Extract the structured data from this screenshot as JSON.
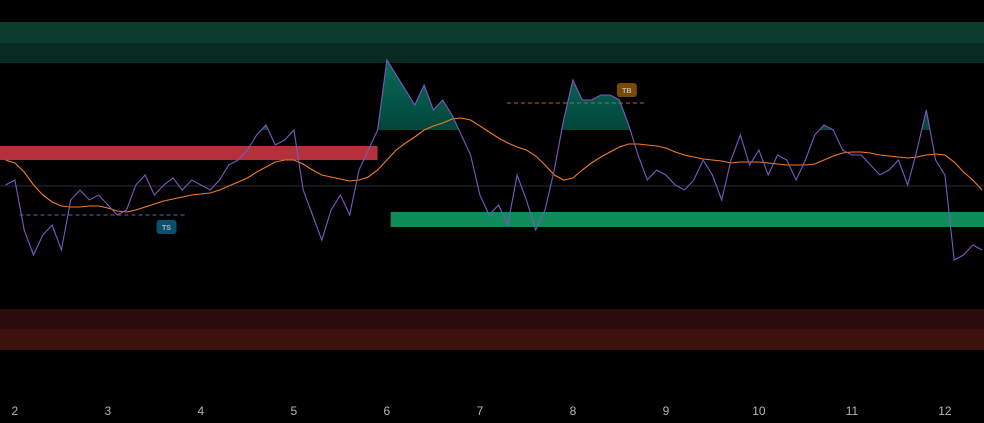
{
  "chart_data": {
    "type": "line",
    "x": [
      1.9,
      2.0,
      2.1,
      2.2,
      2.3,
      2.4,
      2.5,
      2.6,
      2.7,
      2.8,
      2.9,
      3.0,
      3.1,
      3.2,
      3.3,
      3.4,
      3.5,
      3.6,
      3.7,
      3.8,
      3.9,
      4.0,
      4.1,
      4.2,
      4.3,
      4.4,
      4.5,
      4.6,
      4.7,
      4.8,
      4.9,
      5.0,
      5.1,
      5.2,
      5.3,
      5.4,
      5.5,
      5.6,
      5.7,
      5.8,
      5.9,
      6.0,
      6.1,
      6.2,
      6.3,
      6.4,
      6.5,
      6.6,
      6.7,
      6.8,
      6.9,
      7.0,
      7.1,
      7.2,
      7.3,
      7.4,
      7.5,
      7.6,
      7.7,
      7.8,
      7.9,
      8.0,
      8.1,
      8.2,
      8.3,
      8.4,
      8.5,
      8.6,
      8.7,
      8.8,
      8.9,
      9.0,
      9.1,
      9.2,
      9.3,
      9.4,
      9.5,
      9.6,
      9.7,
      9.8,
      9.9,
      10.0,
      10.1,
      10.2,
      10.3,
      10.4,
      10.5,
      10.6,
      10.7,
      10.8,
      10.9,
      11.0,
      11.1,
      11.2,
      11.3,
      11.4,
      11.5,
      11.6,
      11.7,
      11.8,
      11.9,
      12.0,
      12.1,
      12.2,
      12.3,
      12.4
    ],
    "series": [
      {
        "color": "#7e57c2",
        "values": [
          215,
          220,
          170,
          145,
          165,
          175,
          150,
          200,
          210,
          200,
          205,
          195,
          185,
          190,
          215,
          225,
          205,
          215,
          222,
          210,
          220,
          215,
          210,
          220,
          235,
          240,
          250,
          265,
          275,
          255,
          260,
          270,
          210,
          185,
          160,
          190,
          205,
          185,
          230,
          250,
          270,
          340,
          325,
          310,
          295,
          315,
          290,
          300,
          285,
          265,
          245,
          205,
          185,
          195,
          175,
          225,
          200,
          170,
          190,
          230,
          280,
          320,
          300,
          300,
          305,
          305,
          300,
          275,
          245,
          220,
          230,
          225,
          215,
          210,
          220,
          240,
          225,
          200,
          240,
          265,
          235,
          250,
          225,
          245,
          240,
          220,
          240,
          265,
          275,
          270,
          250,
          245,
          245,
          235,
          225,
          230,
          240,
          215,
          250,
          290,
          240,
          225,
          140,
          145,
          155,
          150
        ]
      },
      {
        "color": "#f57c1f",
        "values": [
          240,
          237,
          228,
          215,
          205,
          198,
          194,
          193,
          193,
          194,
          194,
          192,
          189,
          188,
          190,
          193,
          196,
          199,
          201,
          203,
          205,
          206,
          207,
          210,
          214,
          218,
          222,
          228,
          233,
          238,
          240,
          240,
          236,
          230,
          225,
          223,
          221,
          219,
          220,
          223,
          230,
          240,
          250,
          257,
          263,
          270,
          274,
          277,
          281,
          282,
          280,
          274,
          268,
          262,
          257,
          253,
          250,
          244,
          235,
          225,
          220,
          222,
          230,
          237,
          243,
          248,
          253,
          256,
          256,
          255,
          254,
          252,
          248,
          245,
          243,
          241,
          240,
          239,
          237,
          238,
          238,
          238,
          237,
          236,
          235,
          235,
          235,
          236,
          240,
          244,
          247,
          248,
          248,
          247,
          245,
          244,
          243,
          242,
          243,
          245,
          246,
          245,
          238,
          228,
          220,
          210
        ]
      }
    ],
    "fill_above": 270,
    "fill_color": "#089981",
    "zones": [
      {
        "x": [
          1.84,
          12.42
        ],
        "y": [
          357,
          378
        ],
        "color": "#0b3d2e"
      },
      {
        "x": [
          1.84,
          12.42
        ],
        "y": [
          337,
          357
        ],
        "color": "#072b21"
      },
      {
        "x": [
          1.84,
          12.42
        ],
        "y": [
          71,
          91
        ],
        "color": "#2a0d0b"
      },
      {
        "x": [
          1.84,
          12.42
        ],
        "y": [
          50,
          71
        ],
        "color": "#3d120e"
      },
      {
        "x": [
          1.84,
          5.9
        ],
        "y": [
          240,
          254
        ],
        "color": "#b2313a"
      },
      {
        "x": [
          6.04,
          12.42
        ],
        "y": [
          173,
          188
        ],
        "color": "#0e8c5a"
      }
    ],
    "hline": 214,
    "dashed": [
      {
        "x": [
          2.05,
          3.83
        ],
        "y": 185,
        "color": "#5b6aa0"
      },
      {
        "x": [
          7.29,
          8.77
        ],
        "y": 297,
        "color": "#c0642a"
      }
    ],
    "annotations": [
      {
        "text": "TS",
        "x": 3.63,
        "y": 173,
        "color": "#0b4f6c"
      },
      {
        "text": "TB",
        "x": 8.58,
        "y": 310,
        "color": "#7a4a05"
      }
    ],
    "xlim": [
      1.84,
      12.42
    ],
    "ylim": [
      0,
      400
    ],
    "xticks": [
      2,
      3,
      4,
      5,
      6,
      7,
      8,
      9,
      10,
      11,
      12
    ]
  }
}
